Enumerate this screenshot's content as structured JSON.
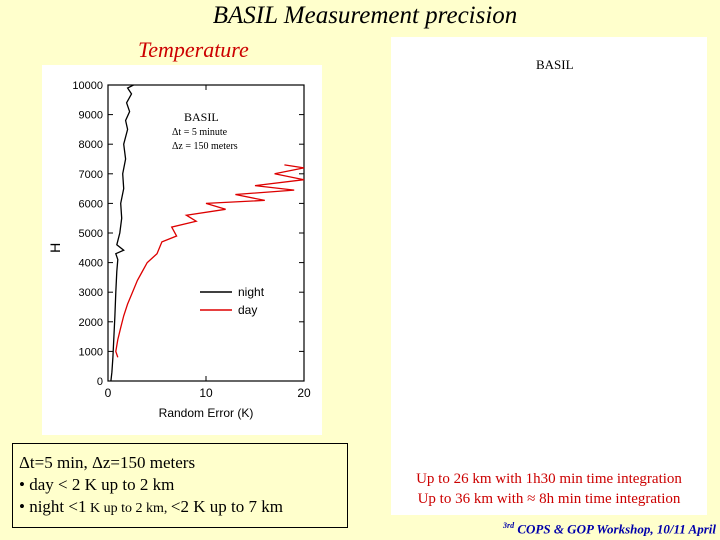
{
  "slide": {
    "title": "BASIL Measurement precision",
    "subtitle": "Temperature",
    "right_panel_label": "BASIL",
    "right_note_1": "Up to 26 km with 1h30 min time integration",
    "right_note_2": "Up to 36 km with ≈ 8h min time integration",
    "footer_sup": "3rd",
    "footer_text": "COPS & GOP Workshop, 10/11 April"
  },
  "notes": {
    "line1": "Δt=5 min, Δz=150 meters",
    "line2": "• day < 2 K up to 2 km",
    "line3_a": "• night <1",
    "line3_b": " K up to 2 km, ",
    "line3_c": "<2 K up to 7 km"
  },
  "chart_data": {
    "type": "line",
    "title": "",
    "instrument_label": "BASIL",
    "annotation_dt": "Δt = 5 minute",
    "annotation_dz": "Δz = 150 meters",
    "xlabel": "Random Error (K)",
    "ylabel": "H",
    "xlim": [
      0,
      20
    ],
    "ylim": [
      0,
      10000
    ],
    "x_ticks": [
      "0",
      "10",
      "20"
    ],
    "y_ticks": [
      "0",
      "1000",
      "2000",
      "3000",
      "4000",
      "5000",
      "6000",
      "7000",
      "8000",
      "9000",
      "10000"
    ],
    "legend": [
      "night",
      "day"
    ],
    "series": [
      {
        "name": "night",
        "color": "#000000",
        "points": [
          [
            0.3,
            0
          ],
          [
            0.4,
            300
          ],
          [
            0.5,
            800
          ],
          [
            0.6,
            1500
          ],
          [
            0.7,
            2200
          ],
          [
            0.8,
            3000
          ],
          [
            0.9,
            3700
          ],
          [
            1.0,
            4100
          ],
          [
            0.8,
            4300
          ],
          [
            1.6,
            4420
          ],
          [
            0.9,
            4600
          ],
          [
            1.2,
            5000
          ],
          [
            1.4,
            5500
          ],
          [
            1.3,
            6000
          ],
          [
            1.6,
            6500
          ],
          [
            1.5,
            7000
          ],
          [
            1.8,
            7500
          ],
          [
            1.6,
            8000
          ],
          [
            2.0,
            8500
          ],
          [
            1.8,
            8800
          ],
          [
            2.2,
            9100
          ],
          [
            1.9,
            9400
          ],
          [
            2.4,
            9700
          ],
          [
            2.0,
            9900
          ],
          [
            2.6,
            10000
          ]
        ]
      },
      {
        "name": "day",
        "color": "#dd0000",
        "points": [
          [
            1.0,
            800
          ],
          [
            0.8,
            1000
          ],
          [
            1.0,
            1400
          ],
          [
            1.3,
            1800
          ],
          [
            1.6,
            2200
          ],
          [
            2.0,
            2600
          ],
          [
            2.5,
            3000
          ],
          [
            3.0,
            3400
          ],
          [
            3.5,
            3700
          ],
          [
            4.0,
            4000
          ],
          [
            5.0,
            4300
          ],
          [
            5.5,
            4700
          ],
          [
            7.0,
            4900
          ],
          [
            6.5,
            5200
          ],
          [
            9.0,
            5400
          ],
          [
            8.0,
            5600
          ],
          [
            12.0,
            5800
          ],
          [
            10.0,
            6000
          ],
          [
            16.0,
            6100
          ],
          [
            13.0,
            6300
          ],
          [
            19.0,
            6450
          ],
          [
            15.0,
            6600
          ],
          [
            20.0,
            6800
          ],
          [
            17.0,
            7000
          ],
          [
            20.0,
            7200
          ],
          [
            18.0,
            7300
          ]
        ]
      }
    ]
  }
}
